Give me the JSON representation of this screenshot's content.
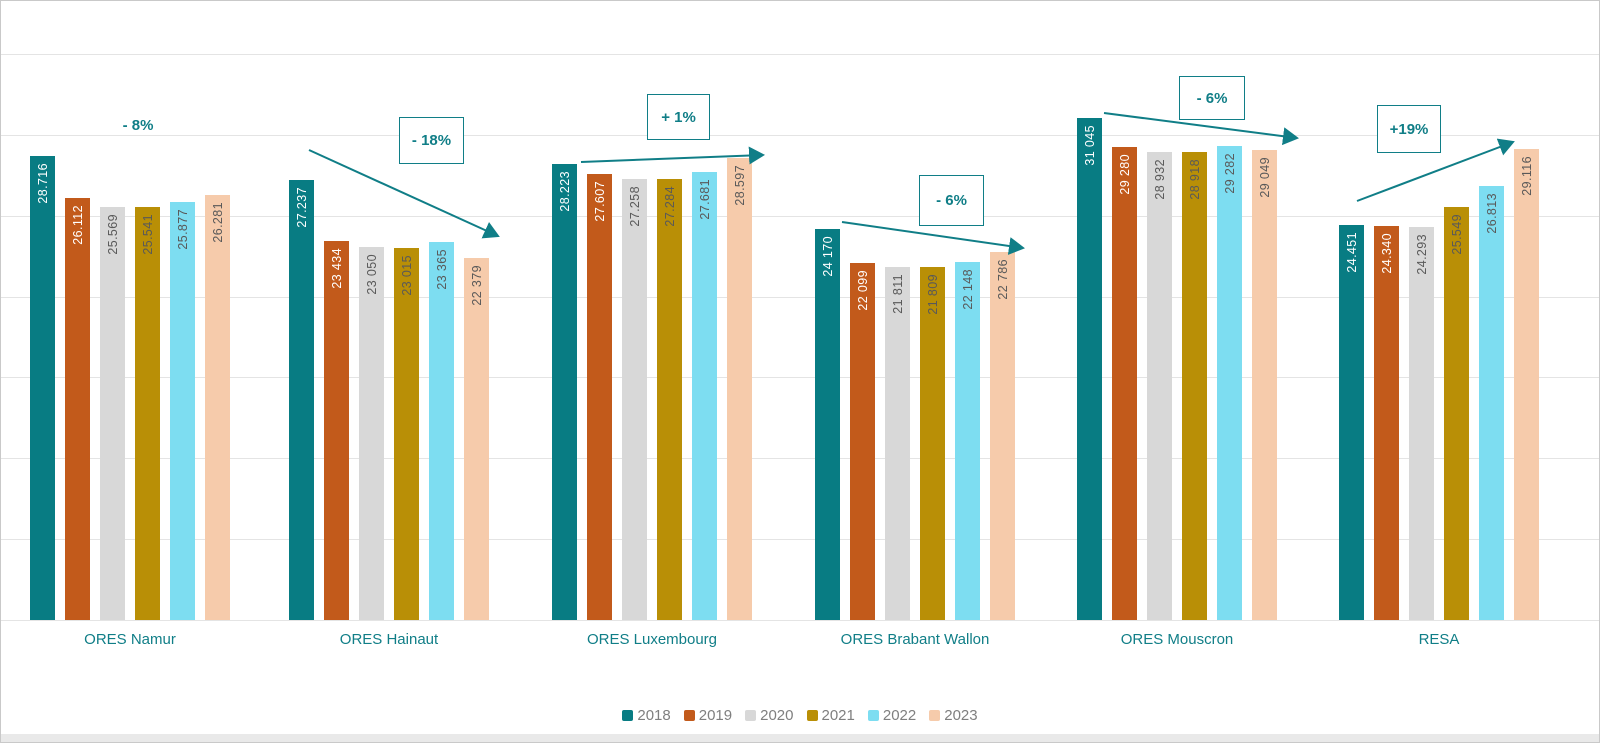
{
  "frame": {
    "background": "#ffffff",
    "border_color": "#c9c9c9",
    "bottom_strip_color": "#e9e9e9"
  },
  "chart_data": {
    "type": "bar",
    "title": "",
    "xlabel": "",
    "ylabel": "",
    "ylim": [
      0,
      35000
    ],
    "gridline_step": 5000,
    "grid": true,
    "y_axis_tick_labels_shown": false,
    "legend_position": "bottom",
    "accent_color": "#107E87",
    "grid_color": "#e4e4e4",
    "category_label_color": "#107E87",
    "legend_text_color": "#7f7f7f",
    "value_label_dark_color": "#595959",
    "categories": [
      "ORES Namur",
      "ORES Hainaut",
      "ORES Luxembourg",
      "ORES Brabant Wallon",
      "ORES Mouscron",
      "RESA"
    ],
    "series": [
      {
        "name": "2018",
        "color": "#087C83",
        "label_color": "#ffffff",
        "values": [
          28716,
          27237,
          28223,
          24170,
          31045,
          24451
        ],
        "labels": [
          "28.716",
          "27.237",
          "28.223",
          "24 170",
          "31 045",
          "24.451"
        ]
      },
      {
        "name": "2019",
        "color": "#C25A1B",
        "label_color": "#ffffff",
        "values": [
          26112,
          23434,
          27607,
          22099,
          29280,
          24340
        ],
        "labels": [
          "26.112",
          "23 434",
          "27.607",
          "22 099",
          "29 280",
          "24.340"
        ]
      },
      {
        "name": "2020",
        "color": "#D8D8D8",
        "label_color": "#595959",
        "values": [
          25569,
          23050,
          27258,
          21811,
          28932,
          24293
        ],
        "labels": [
          "25.569",
          "23 050",
          "27.258",
          "21 811",
          "28 932",
          "24.293"
        ]
      },
      {
        "name": "2021",
        "color": "#B98F06",
        "label_color": "#595959",
        "values": [
          25541,
          23015,
          27284,
          21809,
          28918,
          25549
        ],
        "labels": [
          "25.541",
          "23 015",
          "27.284",
          "21 809",
          "28 918",
          "25.549"
        ]
      },
      {
        "name": "2022",
        "color": "#7DDDF1",
        "label_color": "#595959",
        "values": [
          25877,
          23365,
          27681,
          22148,
          29282,
          26813
        ],
        "labels": [
          "25.877",
          "23 365",
          "27.681",
          "22 148",
          "29 282",
          "26.813"
        ]
      },
      {
        "name": "2023",
        "color": "#F6CBAB",
        "label_color": "#595959",
        "values": [
          26281,
          22379,
          28597,
          22786,
          29049,
          29116
        ],
        "labels": [
          "26.281",
          "22 379",
          "28.597",
          "22 786",
          "29 049",
          "29.116"
        ]
      }
    ],
    "annotations": [
      {
        "text": "- 8%",
        "boxed": false,
        "trend": "down"
      },
      {
        "text": "- 18%",
        "boxed": true,
        "trend": "down"
      },
      {
        "text": "+ 1%",
        "boxed": true,
        "trend": "up"
      },
      {
        "text": "- 6%",
        "boxed": true,
        "trend": "down"
      },
      {
        "text": "- 6%",
        "boxed": true,
        "trend": "down"
      },
      {
        "text": "+19%",
        "boxed": true,
        "trend": "up"
      }
    ]
  }
}
